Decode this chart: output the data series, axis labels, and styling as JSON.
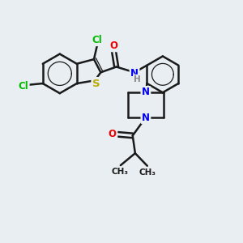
{
  "bg_color": "#e8eef2",
  "bond_color": "#1a1a1a",
  "bond_width": 1.8,
  "atom_colors": {
    "C": "#1a1a1a",
    "N": "#0000ee",
    "O": "#ee0000",
    "S": "#bbaa00",
    "Cl": "#00bb00",
    "H": "#888888"
  },
  "font_size": 8.5
}
